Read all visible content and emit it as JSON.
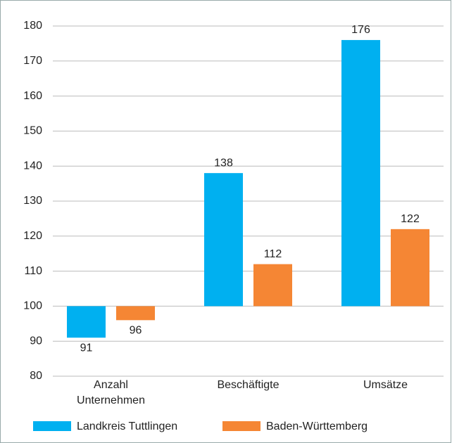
{
  "chart_data": {
    "type": "bar",
    "categories": [
      "Anzahl Unternehmen",
      "Beschäftigte",
      "Umsätze"
    ],
    "series": [
      {
        "name": "Landkreis Tuttlingen",
        "color": "#00b0f0",
        "values": [
          91,
          138,
          176
        ]
      },
      {
        "name": "Baden-Württemberg",
        "color": "#f58634",
        "values": [
          96,
          112,
          122
        ]
      }
    ],
    "baseline": 100,
    "ylim": [
      80,
      180
    ],
    "yticks": [
      80,
      90,
      100,
      110,
      120,
      130,
      140,
      150,
      160,
      170,
      180
    ],
    "grid": true,
    "legend": "bottom"
  }
}
